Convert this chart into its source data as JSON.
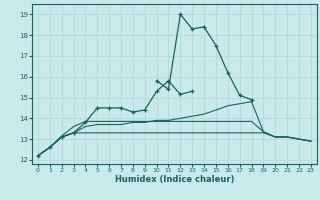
{
  "background_color": "#c8eaea",
  "grid_color": "#b8d8d8",
  "line_color": "#1a6060",
  "xlabel": "Humidex (Indice chaleur)",
  "xlim": [
    -0.5,
    23.5
  ],
  "ylim": [
    11.8,
    19.5
  ],
  "xticks": [
    0,
    1,
    2,
    3,
    4,
    5,
    6,
    7,
    8,
    9,
    10,
    11,
    12,
    13,
    14,
    15,
    16,
    17,
    18,
    19,
    20,
    21,
    22,
    23
  ],
  "yticks": [
    12,
    13,
    14,
    15,
    16,
    17,
    18,
    19
  ],
  "series_marked_low": [
    [
      0,
      12.2
    ],
    [
      1,
      12.6
    ],
    [
      2,
      13.1
    ],
    [
      3,
      13.3
    ],
    [
      4,
      13.8
    ],
    [
      5,
      14.5
    ],
    [
      6,
      14.5
    ],
    [
      7,
      14.5
    ],
    [
      8,
      14.3
    ],
    [
      9,
      14.4
    ],
    [
      10,
      15.3
    ],
    [
      11,
      15.8
    ],
    [
      12,
      15.15
    ],
    [
      13,
      15.3
    ]
  ],
  "series_marked_high": [
    [
      10,
      15.8
    ],
    [
      11,
      15.4
    ],
    [
      12,
      19.0
    ],
    [
      13,
      18.3
    ],
    [
      14,
      18.4
    ],
    [
      15,
      17.5
    ],
    [
      16,
      16.2
    ],
    [
      17,
      15.1
    ],
    [
      18,
      14.9
    ]
  ],
  "series_flat_min": [
    [
      0,
      12.2
    ],
    [
      1,
      12.6
    ],
    [
      2,
      13.1
    ],
    [
      3,
      13.3
    ],
    [
      4,
      13.3
    ],
    [
      5,
      13.3
    ],
    [
      6,
      13.3
    ],
    [
      7,
      13.3
    ],
    [
      8,
      13.3
    ],
    [
      9,
      13.3
    ],
    [
      10,
      13.3
    ],
    [
      11,
      13.3
    ],
    [
      12,
      13.3
    ],
    [
      13,
      13.3
    ],
    [
      14,
      13.3
    ],
    [
      15,
      13.3
    ],
    [
      16,
      13.3
    ],
    [
      17,
      13.3
    ],
    [
      18,
      13.3
    ],
    [
      19,
      13.3
    ],
    [
      20,
      13.1
    ],
    [
      21,
      13.1
    ],
    [
      22,
      13.0
    ],
    [
      23,
      12.9
    ]
  ],
  "series_mean1": [
    [
      0,
      12.2
    ],
    [
      1,
      12.6
    ],
    [
      2,
      13.1
    ],
    [
      3,
      13.3
    ],
    [
      4,
      13.6
    ],
    [
      5,
      13.7
    ],
    [
      6,
      13.7
    ],
    [
      7,
      13.7
    ],
    [
      8,
      13.8
    ],
    [
      9,
      13.8
    ],
    [
      10,
      13.9
    ],
    [
      11,
      13.9
    ],
    [
      12,
      14.0
    ],
    [
      13,
      14.1
    ],
    [
      14,
      14.2
    ],
    [
      15,
      14.4
    ],
    [
      16,
      14.6
    ],
    [
      17,
      14.7
    ],
    [
      18,
      14.8
    ],
    [
      19,
      13.35
    ],
    [
      20,
      13.1
    ],
    [
      21,
      13.1
    ],
    [
      22,
      13.0
    ],
    [
      23,
      12.9
    ]
  ],
  "series_mean2": [
    [
      0,
      12.2
    ],
    [
      1,
      12.6
    ],
    [
      2,
      13.15
    ],
    [
      3,
      13.6
    ],
    [
      4,
      13.85
    ],
    [
      5,
      13.85
    ],
    [
      6,
      13.85
    ],
    [
      7,
      13.85
    ],
    [
      8,
      13.85
    ],
    [
      9,
      13.85
    ],
    [
      10,
      13.85
    ],
    [
      11,
      13.85
    ],
    [
      12,
      13.85
    ],
    [
      13,
      13.85
    ],
    [
      14,
      13.85
    ],
    [
      15,
      13.85
    ],
    [
      16,
      13.85
    ],
    [
      17,
      13.85
    ],
    [
      18,
      13.85
    ],
    [
      19,
      13.35
    ],
    [
      20,
      13.1
    ],
    [
      21,
      13.1
    ],
    [
      22,
      13.0
    ],
    [
      23,
      12.9
    ]
  ]
}
